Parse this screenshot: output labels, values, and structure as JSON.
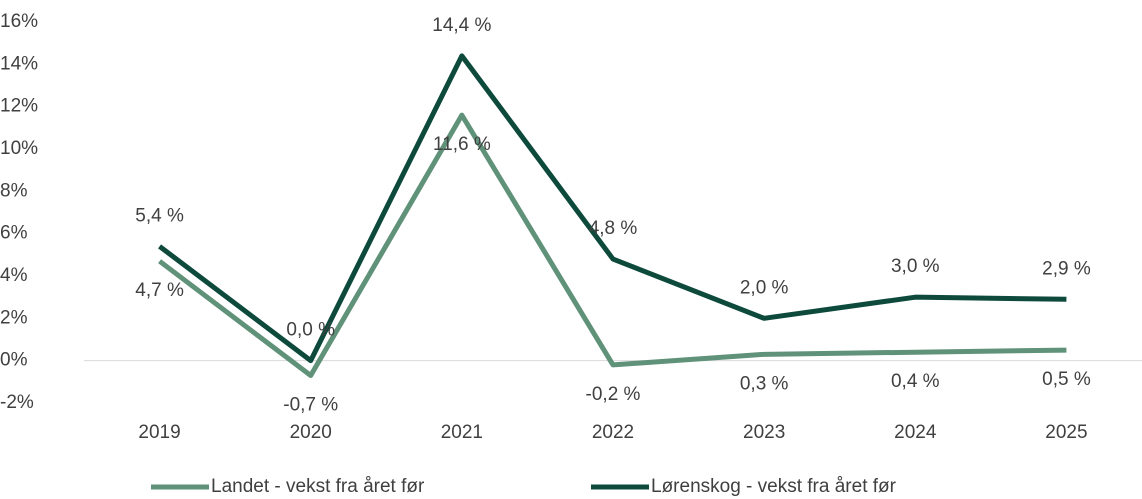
{
  "chart_data": {
    "type": "line",
    "categories": [
      "2019",
      "2020",
      "2021",
      "2022",
      "2023",
      "2024",
      "2025"
    ],
    "series": [
      {
        "name": "Landet - vekst fra året før",
        "color": "#5f9279",
        "values": [
          4.7,
          -0.7,
          11.6,
          -0.2,
          0.3,
          0.4,
          0.5
        ],
        "value_labels": [
          "4,7 %",
          "-0,7 %",
          "11,6 %",
          "-0,2 %",
          "0,3 %",
          "0,4 %",
          "0,5 %"
        ]
      },
      {
        "name": "Lørenskog - vekst fra året før",
        "color": "#0d4a3c",
        "values": [
          5.4,
          0.0,
          14.4,
          4.8,
          2.0,
          3.0,
          2.9
        ],
        "value_labels": [
          "5,4 %",
          "0,0 %",
          "14,4 %",
          "4,8 %",
          "2,0 %",
          "3,0 %",
          "2,9 %"
        ]
      }
    ],
    "ylim": [
      -2,
      16
    ],
    "yticks": [
      {
        "value": -2,
        "label": "-2%"
      },
      {
        "value": 0,
        "label": "0%"
      },
      {
        "value": 2,
        "label": "2%"
      },
      {
        "value": 4,
        "label": "4%"
      },
      {
        "value": 6,
        "label": "6%"
      },
      {
        "value": 8,
        "label": "8%"
      },
      {
        "value": 10,
        "label": "10%"
      },
      {
        "value": 12,
        "label": "12%"
      },
      {
        "value": 14,
        "label": "14%"
      },
      {
        "value": 16,
        "label": "16%"
      }
    ],
    "grid": false,
    "legend": "bottom"
  }
}
